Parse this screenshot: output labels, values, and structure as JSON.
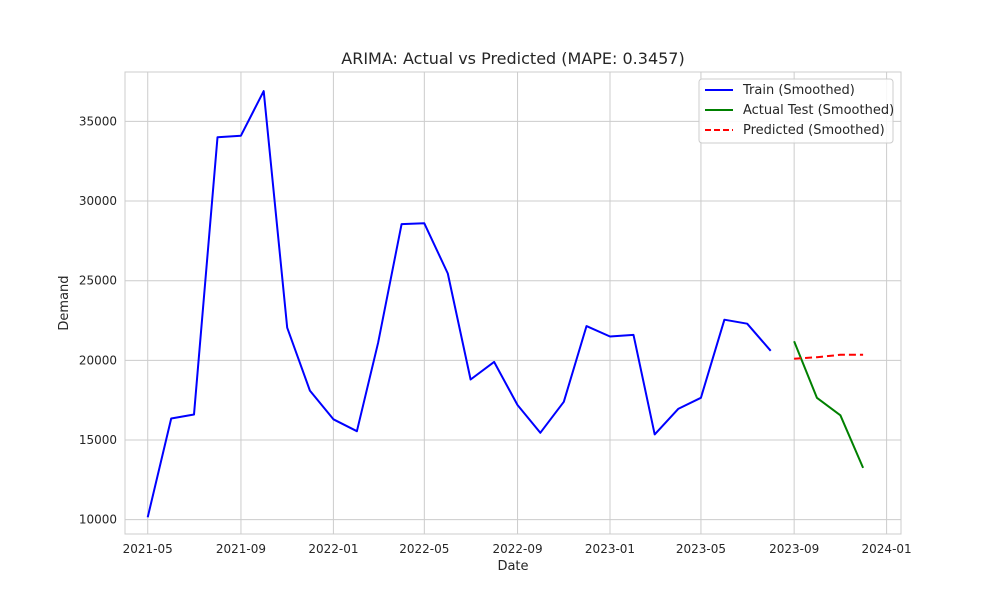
{
  "chart_data": {
    "type": "line",
    "title": "ARIMA: Actual vs Predicted (MAPE: 0.3457)",
    "xlabel": "Date",
    "ylabel": "Demand",
    "xlim": [
      "2021-04-01",
      "2024-01-20"
    ],
    "ylim": [
      9100,
      38100
    ],
    "x_ticks": [
      "2021-05-01",
      "2021-09-01",
      "2022-01-01",
      "2022-05-01",
      "2022-09-01",
      "2023-01-01",
      "2023-05-01",
      "2023-09-01",
      "2024-01-01"
    ],
    "x_tick_labels": [
      "2021-05",
      "2021-09",
      "2022-01",
      "2022-05",
      "2022-09",
      "2023-01",
      "2023-05",
      "2023-09",
      "2024-01"
    ],
    "y_ticks": [
      10000,
      15000,
      20000,
      25000,
      30000,
      35000
    ],
    "y_tick_labels": [
      "10000",
      "15000",
      "20000",
      "25000",
      "30000",
      "35000"
    ],
    "grid": true,
    "legend_position": "top-right",
    "series": [
      {
        "name": "Train (Smoothed)",
        "color": "#0000ff",
        "style": "solid",
        "x": [
          "2021-05-01",
          "2021-06-01",
          "2021-07-01",
          "2021-08-01",
          "2021-09-01",
          "2021-10-01",
          "2021-11-01",
          "2021-12-01",
          "2022-01-01",
          "2022-02-01",
          "2022-03-01",
          "2022-04-01",
          "2022-05-01",
          "2022-06-01",
          "2022-07-01",
          "2022-08-01",
          "2022-09-01",
          "2022-10-01",
          "2022-11-01",
          "2022-12-01",
          "2023-01-01",
          "2023-02-01",
          "2023-03-01",
          "2023-04-01",
          "2023-05-01",
          "2023-06-01",
          "2023-07-01",
          "2023-08-01"
        ],
        "values": [
          10150,
          16350,
          16600,
          34000,
          34100,
          36900,
          22050,
          18100,
          16300,
          15550,
          21100,
          28550,
          28600,
          25450,
          18800,
          19900,
          17200,
          15450,
          17400,
          22150,
          21500,
          21600,
          15350,
          16950,
          17650,
          22550,
          22300,
          20600
        ]
      },
      {
        "name": "Actual Test (Smoothed)",
        "color": "#008000",
        "style": "solid",
        "x": [
          "2023-09-01",
          "2023-10-01",
          "2023-11-01",
          "2023-12-01"
        ],
        "values": [
          21200,
          17650,
          16550,
          13250
        ]
      },
      {
        "name": "Predicted (Smoothed)",
        "color": "#ff0000",
        "style": "dashed",
        "x": [
          "2023-09-01",
          "2023-10-01",
          "2023-11-01",
          "2023-12-01"
        ],
        "values": [
          20100,
          20200,
          20350,
          20350
        ]
      }
    ]
  }
}
